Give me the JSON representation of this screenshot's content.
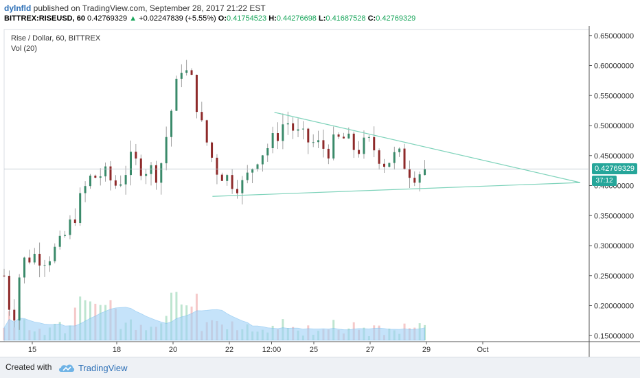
{
  "header": {
    "author": "dylnfld",
    "published_text": "published on TradingView.com, September 28, 2017 21:22 EST",
    "symbol": "BITTREX:RISEUSD, 60",
    "last": "0.42769329",
    "change_arrow": "▲",
    "change": "+0.02247839 (+5.55%)",
    "o_label": "O:",
    "o_value": "0.41754523",
    "h_label": "H:",
    "h_value": "0.44276698",
    "l_label": "L:",
    "l_value": "0.41687528",
    "c_label": "C:",
    "c_value": "0.42769329"
  },
  "overlay": {
    "title": "Rise / Dollar, 60, BITTREX",
    "volume_label": "Vol (20)"
  },
  "price_axis": {
    "ticks": [
      "0.65000000",
      "0.60000000",
      "0.55000000",
      "0.50000000",
      "0.45000000",
      "0.40000000",
      "0.35000000",
      "0.30000000",
      "0.25000000",
      "0.20000000",
      "0.15000000"
    ],
    "current_price": "0.42769329",
    "countdown": "37:12"
  },
  "time_axis": {
    "ticks": [
      "15",
      "18",
      "20",
      "22",
      "12:00",
      "25",
      "27",
      "29",
      "Oct"
    ]
  },
  "footer": {
    "created_with": "Created with",
    "brand": "TradingView"
  },
  "colors": {
    "up": "#3a8a6a",
    "down": "#8e2a2a",
    "trendline": "#7fd3bb",
    "volume_up": "#a8dcc0",
    "volume_down": "#f2b7b7",
    "volume_ma": "#9fd2f7",
    "accent": "#26a69a",
    "link": "#2c6fb6"
  },
  "chart_data": {
    "type": "candlestick",
    "y_range": [
      0.14,
      0.66
    ],
    "price_ticks": [
      0.65,
      0.6,
      0.55,
      0.5,
      0.45,
      0.4,
      0.35,
      0.3,
      0.25,
      0.2,
      0.15
    ],
    "time_ticks": [
      "15",
      "18",
      "20",
      "22",
      "12:00",
      "25",
      "27",
      "29",
      "Oct"
    ],
    "last_price": 0.42769329,
    "series_anchor": [
      {
        "t": "14",
        "close": 0.25
      },
      {
        "t": "14.3",
        "close": 0.17
      },
      {
        "t": "14.6",
        "close": 0.27
      },
      {
        "t": "15",
        "close": 0.285
      },
      {
        "t": "15.5",
        "close": 0.28
      },
      {
        "t": "16",
        "close": 0.3
      },
      {
        "t": "16.5",
        "close": 0.35
      },
      {
        "t": "17",
        "close": 0.41
      },
      {
        "t": "17.5",
        "close": 0.42
      },
      {
        "t": "18",
        "close": 0.4
      },
      {
        "t": "18.5",
        "close": 0.44
      },
      {
        "t": "19",
        "close": 0.43
      },
      {
        "t": "19.5",
        "close": 0.42
      },
      {
        "t": "20",
        "close": 0.54
      },
      {
        "t": "20.3",
        "close": 0.6
      },
      {
        "t": "20.7",
        "close": 0.57
      },
      {
        "t": "21",
        "close": 0.5
      },
      {
        "t": "21.5",
        "close": 0.43
      },
      {
        "t": "22",
        "close": 0.41
      },
      {
        "t": "22.5",
        "close": 0.4
      },
      {
        "t": "23",
        "close": 0.45
      },
      {
        "t": "23.5",
        "close": 0.47
      },
      {
        "t": "24",
        "close": 0.51
      },
      {
        "t": "24.5",
        "close": 0.48
      },
      {
        "t": "25",
        "close": 0.47
      },
      {
        "t": "25.5",
        "close": 0.46
      },
      {
        "t": "26",
        "close": 0.48
      },
      {
        "t": "26.5",
        "close": 0.46
      },
      {
        "t": "27",
        "close": 0.47
      },
      {
        "t": "27.5",
        "close": 0.44
      },
      {
        "t": "28",
        "close": 0.45
      },
      {
        "t": "28.5",
        "close": 0.42
      },
      {
        "t": "29",
        "close": 0.428
      }
    ]
  }
}
